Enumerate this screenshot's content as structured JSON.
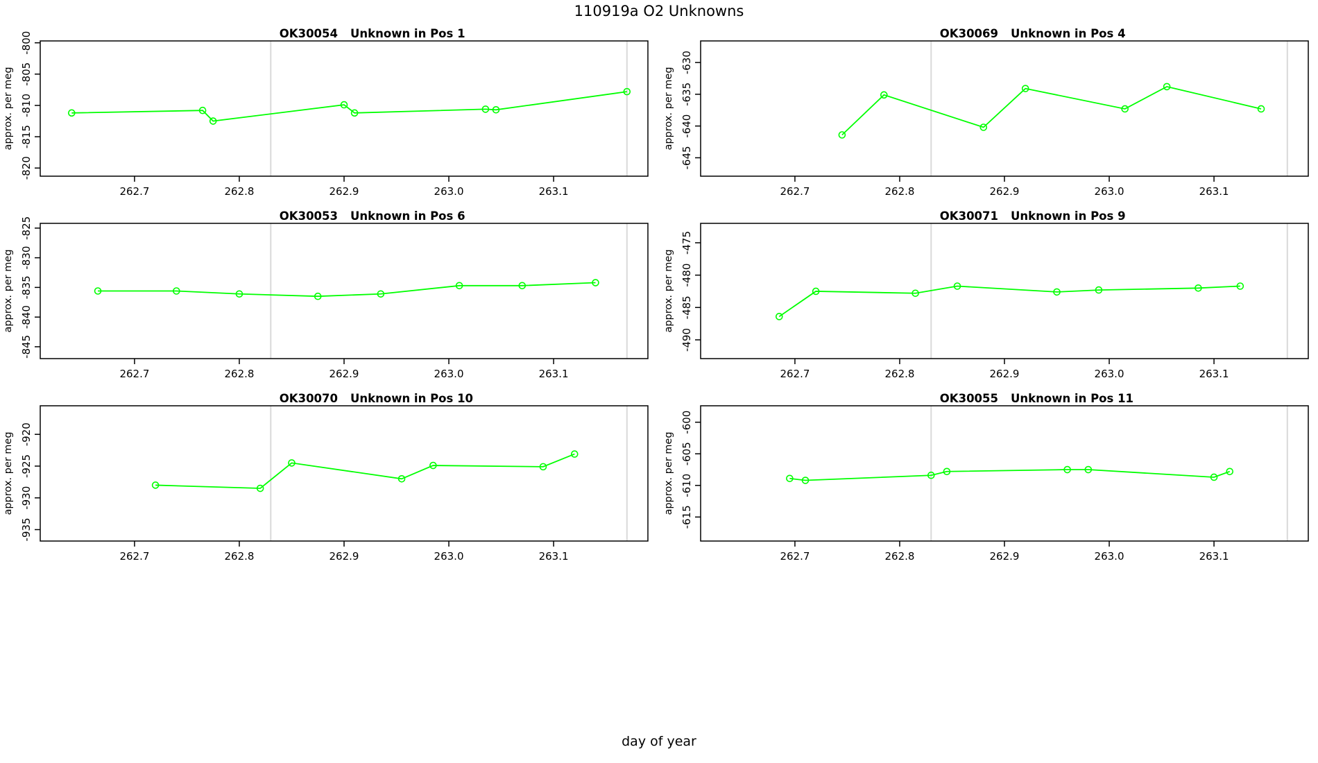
{
  "page": {
    "title": "110919a  O2 Unknowns",
    "xlabel": "day of year"
  },
  "style": {
    "series_color": "#00ff00",
    "vline_color": "#d9d9d9",
    "axis_color": "#000000",
    "background": "#ffffff"
  },
  "chart_data": [
    {
      "type": "line",
      "title_id": "OK30054",
      "title_desc": "Unknown in Pos 1",
      "ylabel": "approx. per meg",
      "xlim": [
        262.61,
        263.19
      ],
      "ylim": [
        -821.3,
        -799.7
      ],
      "xticks": [
        262.7,
        262.8,
        262.9,
        263.0,
        263.1
      ],
      "xtick_labels": [
        "262.7",
        "262.8",
        "262.9",
        "263.0",
        "263.1"
      ],
      "yticks": [
        -800,
        -805,
        -810,
        -815,
        -820
      ],
      "vlines": [
        262.83,
        263.17
      ],
      "grid": false,
      "legend": null,
      "marker": "open-circle",
      "points": [
        [
          262.64,
          -811.2
        ],
        [
          262.765,
          -810.8
        ],
        [
          262.775,
          -812.5
        ],
        [
          262.9,
          -809.9
        ],
        [
          262.91,
          -811.2
        ],
        [
          263.035,
          -810.6
        ],
        [
          263.045,
          -810.7
        ],
        [
          263.17,
          -807.8
        ]
      ]
    },
    {
      "type": "line",
      "title_id": "OK30069",
      "title_desc": "Unknown in Pos 4",
      "ylabel": "approx. per meg",
      "xlim": [
        262.61,
        263.19
      ],
      "ylim": [
        -647.9,
        -626.6
      ],
      "xticks": [
        262.7,
        262.8,
        262.9,
        263.0,
        263.1
      ],
      "xtick_labels": [
        "262.7",
        "262.8",
        "262.9",
        "263.0",
        "263.1"
      ],
      "yticks": [
        -630,
        -635,
        -640,
        -645
      ],
      "vlines": [
        262.83,
        263.17
      ],
      "grid": false,
      "legend": null,
      "marker": "open-circle",
      "points": [
        [
          262.745,
          -641.4
        ],
        [
          262.785,
          -635.1
        ],
        [
          262.88,
          -640.2
        ],
        [
          262.92,
          -634.1
        ],
        [
          263.015,
          -637.3
        ],
        [
          263.055,
          -633.8
        ],
        [
          263.145,
          -637.3
        ]
      ]
    },
    {
      "type": "line",
      "title_id": "OK30053",
      "title_desc": "Unknown in Pos 6",
      "ylabel": "approx. per meg",
      "xlim": [
        262.61,
        263.19
      ],
      "ylim": [
        -847.0,
        -824.2
      ],
      "xticks": [
        262.7,
        262.8,
        262.9,
        263.0,
        263.1
      ],
      "xtick_labels": [
        "262.7",
        "262.8",
        "262.9",
        "263.0",
        "263.1"
      ],
      "yticks": [
        -825,
        -830,
        -835,
        -840,
        -845
      ],
      "vlines": [
        262.83,
        263.17
      ],
      "grid": false,
      "legend": null,
      "marker": "open-circle",
      "points": [
        [
          262.665,
          -835.6
        ],
        [
          262.74,
          -835.6
        ],
        [
          262.8,
          -836.1
        ],
        [
          262.875,
          -836.5
        ],
        [
          262.935,
          -836.1
        ],
        [
          263.01,
          -834.7
        ],
        [
          263.07,
          -834.7
        ],
        [
          263.14,
          -834.2
        ]
      ]
    },
    {
      "type": "line",
      "title_id": "OK30071",
      "title_desc": "Unknown in Pos 9",
      "ylabel": "approx. per meg",
      "xlim": [
        262.61,
        263.19
      ],
      "ylim": [
        -492.9,
        -472.0
      ],
      "xticks": [
        262.7,
        262.8,
        262.9,
        263.0,
        263.1
      ],
      "xtick_labels": [
        "262.7",
        "262.8",
        "262.9",
        "263.0",
        "263.1"
      ],
      "yticks": [
        -475,
        -480,
        -485,
        -490
      ],
      "vlines": [
        262.83,
        263.17
      ],
      "grid": false,
      "legend": null,
      "marker": "open-circle",
      "points": [
        [
          262.685,
          -486.4
        ],
        [
          262.72,
          -482.5
        ],
        [
          262.815,
          -482.8
        ],
        [
          262.855,
          -481.7
        ],
        [
          262.95,
          -482.6
        ],
        [
          262.99,
          -482.3
        ],
        [
          263.085,
          -482.0
        ],
        [
          263.125,
          -481.7
        ]
      ]
    },
    {
      "type": "line",
      "title_id": "OK30070",
      "title_desc": "Unknown in Pos 10",
      "ylabel": "approx. per meg",
      "xlim": [
        262.61,
        263.19
      ],
      "ylim": [
        -936.8,
        -915.5
      ],
      "xticks": [
        262.7,
        262.8,
        262.9,
        263.0,
        263.1
      ],
      "xtick_labels": [
        "262.7",
        "262.8",
        "262.9",
        "263.0",
        "263.1"
      ],
      "yticks": [
        -920,
        -925,
        -930,
        -935
      ],
      "vlines": [
        262.83,
        263.17
      ],
      "grid": false,
      "legend": null,
      "marker": "open-circle",
      "points": [
        [
          262.72,
          -928.0
        ],
        [
          262.82,
          -928.5
        ],
        [
          262.85,
          -924.5
        ],
        [
          262.955,
          -927.0
        ],
        [
          262.985,
          -924.9
        ],
        [
          263.09,
          -925.1
        ],
        [
          263.12,
          -923.1
        ]
      ]
    },
    {
      "type": "line",
      "title_id": "OK30055",
      "title_desc": "Unknown in Pos 11",
      "ylabel": "approx. per meg",
      "xlim": [
        262.61,
        263.19
      ],
      "ylim": [
        -618.8,
        -597.4
      ],
      "xticks": [
        262.7,
        262.8,
        262.9,
        263.0,
        263.1
      ],
      "xtick_labels": [
        "262.7",
        "262.8",
        "262.9",
        "263.0",
        "263.1"
      ],
      "yticks": [
        -600,
        -605,
        -610,
        -615
      ],
      "vlines": [
        262.83,
        263.17
      ],
      "grid": false,
      "legend": null,
      "marker": "open-circle",
      "points": [
        [
          262.695,
          -608.9
        ],
        [
          262.71,
          -609.2
        ],
        [
          262.83,
          -608.4
        ],
        [
          262.845,
          -607.8
        ],
        [
          262.96,
          -607.5
        ],
        [
          262.98,
          -607.5
        ],
        [
          263.1,
          -608.7
        ],
        [
          263.115,
          -607.8
        ]
      ]
    }
  ]
}
